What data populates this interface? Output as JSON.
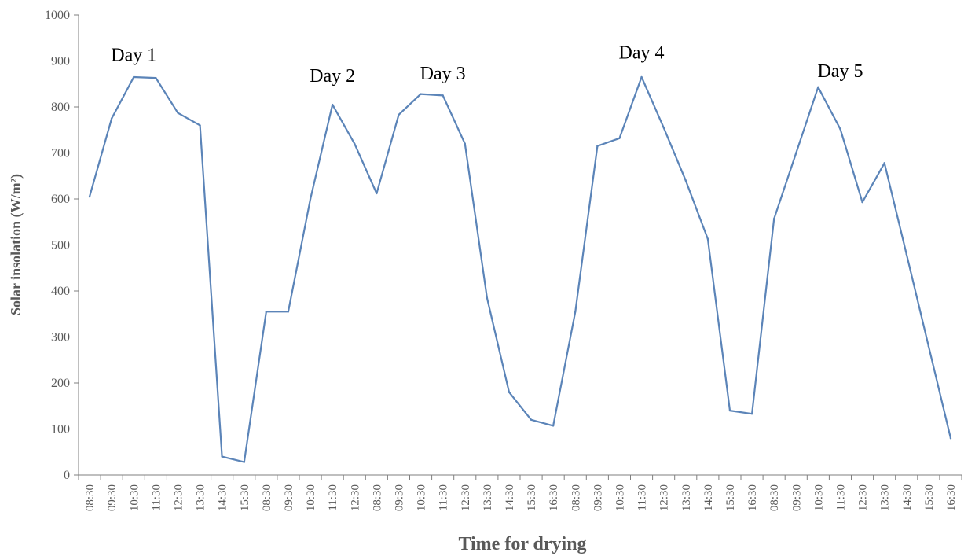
{
  "chart_data": {
    "type": "line",
    "title": "",
    "xlabel": "Time for drying",
    "ylabel": "Solar insolation (W/m²)",
    "ylim": [
      0,
      1000
    ],
    "yticks": [
      "0",
      "100",
      "200",
      "300",
      "400",
      "500",
      "600",
      "700",
      "800",
      "900",
      "1000"
    ],
    "grid": false,
    "categories": [
      "08:30",
      "09:30",
      "10:30",
      "11:30",
      "12:30",
      "13:30",
      "14:30",
      "15:30",
      "08:30",
      "09:30",
      "10:30",
      "11:30",
      "12:30",
      "08:30",
      "09:30",
      "10:30",
      "11:30",
      "12:30",
      "13:30",
      "14:30",
      "15:30",
      "16:30",
      "08:30",
      "09:30",
      "10:30",
      "11:30",
      "12:30",
      "13:30",
      "14:30",
      "15:30",
      "16:30",
      "08:30",
      "09:30",
      "10:30",
      "11:30",
      "12:30",
      "13:30",
      "14:30",
      "15:30",
      "16:30"
    ],
    "series": [
      {
        "color": "#5b84b8",
        "values": [
          605,
          775,
          865,
          863,
          787,
          760,
          40,
          28,
          355,
          355,
          600,
          805,
          720,
          612,
          783,
          828,
          825,
          720,
          385,
          180,
          120,
          107,
          355,
          715,
          732,
          865,
          755,
          640,
          513,
          140,
          133,
          557,
          700,
          843,
          752,
          593,
          678,
          480,
          280,
          80
        ]
      }
    ],
    "annotations": [
      {
        "text": "Day 1",
        "index": 2,
        "y": 900
      },
      {
        "text": "Day 2",
        "index": 11,
        "y": 855
      },
      {
        "text": "Day 3",
        "index": 16,
        "y": 860
      },
      {
        "text": "Day 4",
        "index": 25,
        "y": 905
      },
      {
        "text": "Day 5",
        "index": 34,
        "y": 865
      }
    ]
  }
}
